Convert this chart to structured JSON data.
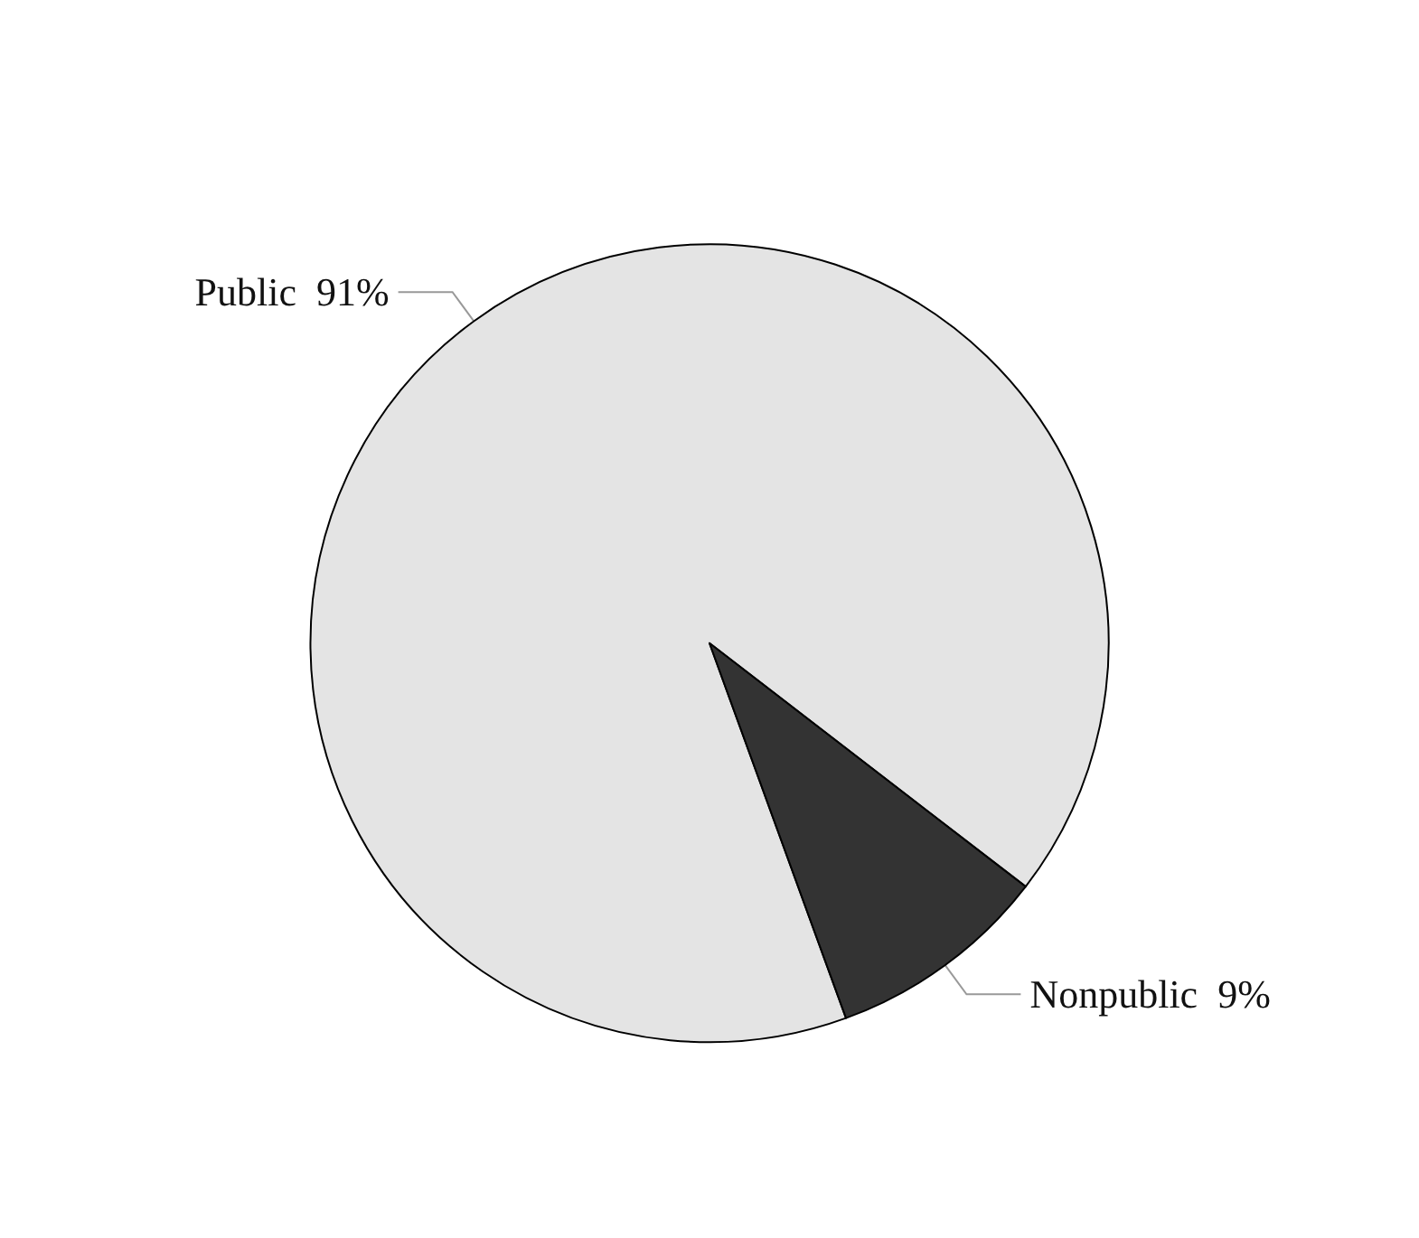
{
  "chart_data": {
    "type": "pie",
    "categories": [
      "Public",
      "Nonpublic"
    ],
    "values": [
      91,
      9
    ],
    "colors": [
      "#e4e4e4",
      "#333333"
    ],
    "value_labels": [
      "91%",
      "9%"
    ],
    "legend": false
  }
}
